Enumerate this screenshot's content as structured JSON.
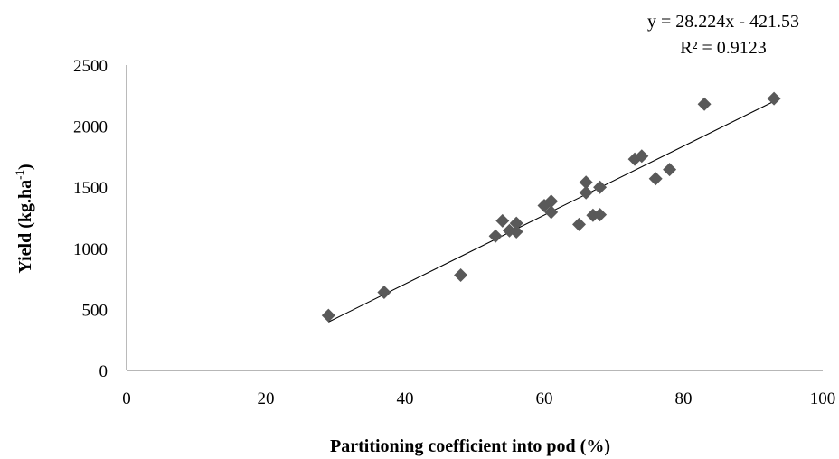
{
  "chart_data": {
    "type": "scatter",
    "xlabel": "Partitioning coefficient into pod (%)",
    "ylabel": "Yield (kg.ha-1)",
    "ylabel_main": "Yield (kg.ha",
    "ylabel_sup": "-1",
    "ylabel_end": ")",
    "xlim": [
      0,
      100
    ],
    "ylim": [
      0,
      2500
    ],
    "x_ticks": [
      0,
      20,
      40,
      60,
      80,
      100
    ],
    "y_ticks": [
      0,
      500,
      1000,
      1500,
      2000,
      2500
    ],
    "grid": false,
    "marker": "diamond",
    "marker_color": "#595959",
    "points": [
      {
        "x": 29,
        "y": 450
      },
      {
        "x": 37,
        "y": 640
      },
      {
        "x": 48,
        "y": 780
      },
      {
        "x": 53,
        "y": 1100
      },
      {
        "x": 54,
        "y": 1225
      },
      {
        "x": 55,
        "y": 1145
      },
      {
        "x": 56,
        "y": 1205
      },
      {
        "x": 56,
        "y": 1135
      },
      {
        "x": 60,
        "y": 1350
      },
      {
        "x": 61,
        "y": 1385
      },
      {
        "x": 61,
        "y": 1295
      },
      {
        "x": 65,
        "y": 1195
      },
      {
        "x": 66,
        "y": 1540
      },
      {
        "x": 66,
        "y": 1455
      },
      {
        "x": 67,
        "y": 1270
      },
      {
        "x": 68,
        "y": 1275
      },
      {
        "x": 68,
        "y": 1500
      },
      {
        "x": 73,
        "y": 1730
      },
      {
        "x": 74,
        "y": 1755
      },
      {
        "x": 76,
        "y": 1570
      },
      {
        "x": 78,
        "y": 1645
      },
      {
        "x": 83,
        "y": 2180
      },
      {
        "x": 93,
        "y": 2225
      }
    ],
    "trendline": {
      "type": "linear",
      "slope": 28.224,
      "intercept": -421.53,
      "x_range": [
        29,
        93
      ],
      "equation": "y = 28.224x - 421.53",
      "r_squared": "R² = 0.9123"
    }
  }
}
